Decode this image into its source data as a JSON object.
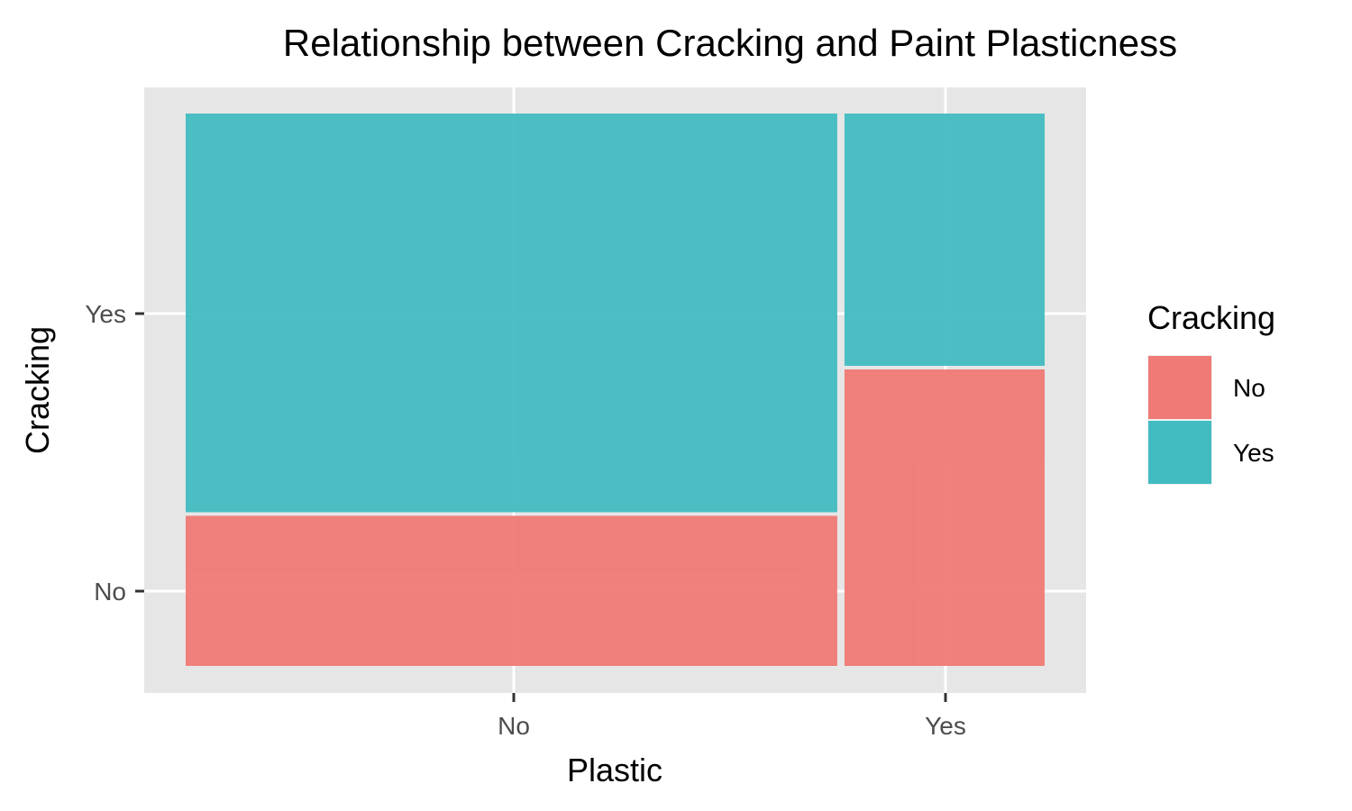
{
  "chart_data": {
    "type": "mosaic",
    "title": "Relationship between Cracking and Paint Plasticness",
    "xlabel": "Plastic",
    "ylabel": "Cracking",
    "x_categories": [
      "No",
      "Yes"
    ],
    "y_categories": [
      "No",
      "Yes"
    ],
    "columns": [
      {
        "x": "No",
        "width_fraction": 0.765,
        "segments": [
          {
            "fill": "No",
            "fraction": 0.275
          },
          {
            "fill": "Yes",
            "fraction": 0.725
          }
        ]
      },
      {
        "x": "Yes",
        "width_fraction": 0.235,
        "segments": [
          {
            "fill": "No",
            "fraction": 0.54
          },
          {
            "fill": "Yes",
            "fraction": 0.46
          }
        ]
      }
    ],
    "legend": {
      "title": "Cracking",
      "position": "right",
      "entries": [
        {
          "label": "No",
          "color": "#F07A75"
        },
        {
          "label": "Yes",
          "color": "#42BCC1"
        }
      ]
    },
    "panel_background": "#E6E6E6",
    "grid": true
  }
}
